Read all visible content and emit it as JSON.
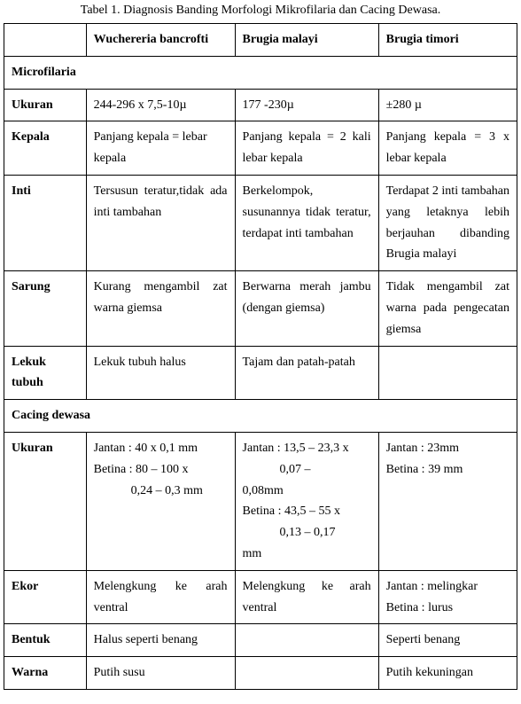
{
  "caption": "Tabel 1. Diagnosis Banding Morfologi Mikrofilaria dan Cacing Dewasa.",
  "headers": {
    "blank": "",
    "wb": "Wuchereria bancrofti",
    "bm": "Brugia malayi",
    "bt": "Brugia timori"
  },
  "sections": {
    "microfilaria": "Microfilaria",
    "cacing_dewasa": "Cacing dewasa"
  },
  "rows": {
    "ukuran1": {
      "label": "Ukuran",
      "wb": "244-296 x 7,5-10µ",
      "bm": "177 -230µ",
      "bt": "±280 µ"
    },
    "kepala": {
      "label": "Kepala",
      "wb": "Panjang kepala = lebar kepala",
      "bm": "Panjang kepala = 2 kali lebar kepala",
      "bt": "Panjang kepala = 3 x lebar kepala"
    },
    "inti": {
      "label": "Inti",
      "wb": "Tersusun teratur,tidak ada inti tambahan",
      "bm": "Berkelompok, susunannya tidak teratur, terdapat inti tambahan",
      "bt": "Terdapat 2 inti tambahan yang letaknya lebih berjauhan dibanding Brugia malayi"
    },
    "sarung": {
      "label": "Sarung",
      "wb": "Kurang mengambil zat warna giemsa",
      "bm": "Berwarna merah jambu (dengan giemsa)",
      "bt": "Tidak mengambil zat warna pada pengecatan giemsa"
    },
    "lekuk": {
      "label": "Lekuk tubuh",
      "wb": "Lekuk tubuh halus",
      "bm": "Tajam dan patah-patah",
      "bt": ""
    },
    "ukuran2": {
      "label": "Ukuran",
      "wb_l1": "Jantan : 40 x 0,1 mm",
      "wb_l2": "Betina : 80 – 100 x",
      "wb_l3": "0,24 – 0,3 mm",
      "bm_l1": "Jantan : 13,5 – 23,3 x",
      "bm_l2": "0,07 –",
      "bm_l3": "0,08mm",
      "bm_l4": "Betina : 43,5 – 55 x",
      "bm_l5": "0,13 – 0,17",
      "bm_l6": "mm",
      "bt_l1": "Jantan : 23mm",
      "bt_l2": "Betina : 39 mm"
    },
    "ekor": {
      "label": "Ekor",
      "wb": "Melengkung ke arah ventral",
      "bm": "Melengkung ke arah ventral",
      "bt_l1": "Jantan : melingkar",
      "bt_l2": "Betina : lurus"
    },
    "bentuk": {
      "label": "Bentuk",
      "wb": "Halus seperti benang",
      "bm": "",
      "bt": "Seperti benang"
    },
    "warna": {
      "label": "Warna",
      "wb": "Putih susu",
      "bm": "",
      "bt": "Putih kekuningan"
    }
  }
}
